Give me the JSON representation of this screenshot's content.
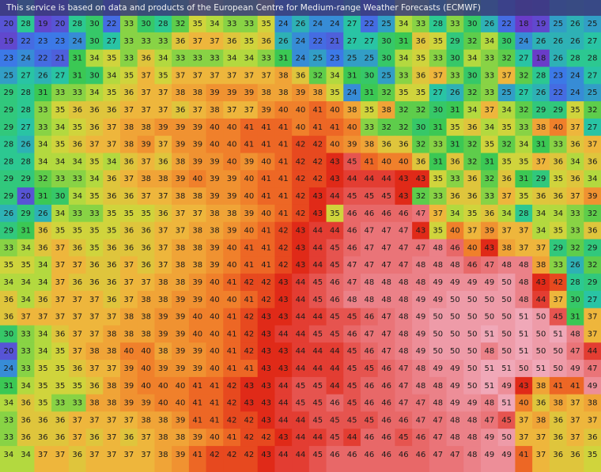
{
  "header": {
    "title": "This service is based on data and products of the European Centre for Medium-range Weather Forecasts (ECMWF)"
  },
  "grid": {
    "rows": [
      [
        20,
        28,
        19,
        20,
        28,
        30,
        22,
        33,
        30,
        28,
        32,
        35,
        34,
        33,
        33,
        35,
        24,
        26,
        24,
        24,
        27,
        22,
        25,
        34,
        33,
        28,
        33,
        30,
        26,
        22,
        18,
        19,
        25,
        26,
        25
      ],
      [
        19,
        22,
        23,
        23,
        24,
        30,
        27,
        33,
        33,
        33,
        36,
        37,
        37,
        36,
        35,
        36,
        26,
        24,
        22,
        21,
        27,
        27,
        30,
        31,
        36,
        35,
        29,
        32,
        34,
        30,
        24,
        26,
        26,
        26,
        27
      ],
      [
        23,
        24,
        22,
        21,
        31,
        34,
        35,
        33,
        36,
        34,
        33,
        33,
        33,
        34,
        34,
        33,
        31,
        24,
        25,
        23,
        25,
        25,
        30,
        34,
        35,
        33,
        30,
        34,
        33,
        32,
        27,
        18,
        26,
        28,
        28
      ],
      [
        25,
        27,
        26,
        27,
        31,
        30,
        34,
        35,
        37,
        35,
        37,
        37,
        37,
        37,
        37,
        37,
        38,
        36,
        32,
        34,
        31,
        30,
        25,
        33,
        36,
        37,
        33,
        30,
        33,
        37,
        32,
        28,
        23,
        24,
        27
      ],
      [
        29,
        28,
        31,
        33,
        33,
        34,
        35,
        36,
        37,
        37,
        38,
        38,
        39,
        39,
        39,
        38,
        38,
        39,
        38,
        35,
        24,
        31,
        32,
        35,
        35,
        27,
        26,
        32,
        33,
        25,
        27,
        26,
        22,
        24,
        25
      ],
      [
        29,
        28,
        33,
        35,
        36,
        36,
        36,
        37,
        37,
        37,
        36,
        37,
        38,
        37,
        37,
        39,
        40,
        40,
        41,
        40,
        38,
        35,
        38,
        32,
        32,
        30,
        31,
        34,
        37,
        34,
        32,
        29,
        29,
        35,
        32
      ],
      [
        29,
        27,
        33,
        34,
        35,
        36,
        37,
        38,
        38,
        39,
        39,
        39,
        40,
        40,
        41,
        41,
        41,
        40,
        41,
        41,
        40,
        33,
        32,
        32,
        30,
        31,
        35,
        36,
        34,
        35,
        33,
        38,
        40,
        37,
        27
      ],
      [
        28,
        26,
        34,
        35,
        36,
        37,
        37,
        38,
        39,
        37,
        39,
        39,
        40,
        40,
        41,
        41,
        41,
        42,
        42,
        40,
        39,
        38,
        36,
        36,
        32,
        33,
        31,
        32,
        35,
        32,
        34,
        31,
        33,
        36,
        37
      ],
      [
        28,
        28,
        34,
        34,
        34,
        35,
        34,
        36,
        37,
        36,
        38,
        39,
        39,
        40,
        39,
        40,
        41,
        42,
        42,
        43,
        45,
        41,
        40,
        40,
        36,
        31,
        36,
        32,
        31,
        35,
        35,
        37,
        36,
        34,
        36
      ],
      [
        29,
        29,
        32,
        33,
        33,
        34,
        36,
        37,
        38,
        38,
        39,
        40,
        39,
        39,
        40,
        41,
        41,
        42,
        42,
        43,
        44,
        44,
        44,
        43,
        43,
        35,
        33,
        36,
        32,
        36,
        31,
        29,
        35,
        36,
        34
      ],
      [
        29,
        20,
        31,
        30,
        34,
        35,
        36,
        36,
        37,
        37,
        38,
        38,
        39,
        39,
        40,
        41,
        41,
        42,
        43,
        44,
        45,
        45,
        45,
        43,
        32,
        33,
        36,
        36,
        33,
        37,
        35,
        36,
        36,
        37,
        39
      ],
      [
        26,
        29,
        26,
        34,
        33,
        33,
        35,
        35,
        35,
        36,
        37,
        37,
        38,
        38,
        39,
        40,
        41,
        42,
        43,
        35,
        46,
        46,
        46,
        46,
        47,
        37,
        34,
        35,
        36,
        34,
        28,
        34,
        34,
        33,
        32
      ],
      [
        29,
        31,
        36,
        35,
        35,
        35,
        35,
        36,
        36,
        37,
        37,
        38,
        38,
        39,
        40,
        41,
        42,
        43,
        44,
        44,
        46,
        47,
        47,
        47,
        43,
        35,
        40,
        37,
        39,
        37,
        37,
        34,
        35,
        33,
        36
      ],
      [
        33,
        34,
        36,
        37,
        36,
        35,
        36,
        36,
        36,
        37,
        38,
        38,
        39,
        40,
        41,
        41,
        42,
        43,
        44,
        45,
        46,
        47,
        47,
        47,
        47,
        48,
        46,
        40,
        43,
        38,
        37,
        37,
        29,
        32,
        29
      ],
      [
        35,
        35,
        34,
        37,
        37,
        36,
        36,
        37,
        36,
        37,
        38,
        38,
        39,
        40,
        41,
        41,
        42,
        43,
        44,
        45,
        47,
        47,
        47,
        47,
        48,
        48,
        48,
        46,
        47,
        48,
        48,
        38,
        33,
        26,
        32
      ],
      [
        34,
        34,
        34,
        37,
        36,
        36,
        36,
        37,
        37,
        38,
        38,
        39,
        40,
        41,
        42,
        42,
        43,
        44,
        45,
        46,
        47,
        48,
        48,
        48,
        48,
        49,
        49,
        49,
        49,
        50,
        48,
        43,
        42,
        28,
        29
      ],
      [
        36,
        34,
        36,
        37,
        37,
        37,
        36,
        37,
        38,
        38,
        39,
        39,
        40,
        40,
        41,
        42,
        43,
        44,
        45,
        46,
        48,
        48,
        48,
        48,
        49,
        49,
        50,
        50,
        50,
        50,
        48,
        44,
        37,
        30,
        27
      ],
      [
        36,
        37,
        37,
        37,
        37,
        37,
        37,
        38,
        38,
        39,
        39,
        40,
        40,
        41,
        42,
        43,
        43,
        44,
        44,
        45,
        45,
        46,
        47,
        48,
        49,
        50,
        50,
        50,
        50,
        50,
        51,
        50,
        45,
        31,
        37
      ],
      [
        30,
        33,
        34,
        36,
        37,
        37,
        38,
        38,
        38,
        39,
        39,
        40,
        40,
        41,
        42,
        43,
        44,
        44,
        45,
        45,
        46,
        47,
        47,
        48,
        49,
        50,
        50,
        50,
        51,
        50,
        51,
        50,
        51,
        48,
        37
      ],
      [
        20,
        33,
        34,
        35,
        37,
        38,
        38,
        40,
        40,
        38,
        39,
        39,
        40,
        41,
        42,
        43,
        43,
        44,
        44,
        44,
        45,
        46,
        47,
        48,
        49,
        50,
        50,
        50,
        48,
        50,
        51,
        50,
        50,
        47,
        44
      ],
      [
        24,
        33,
        35,
        35,
        36,
        37,
        37,
        39,
        40,
        39,
        39,
        39,
        40,
        41,
        41,
        43,
        43,
        44,
        44,
        44,
        45,
        45,
        46,
        47,
        48,
        49,
        49,
        50,
        51,
        51,
        50,
        51,
        50,
        49,
        47
      ],
      [
        31,
        34,
        35,
        35,
        35,
        36,
        38,
        39,
        40,
        40,
        40,
        41,
        41,
        42,
        43,
        43,
        44,
        45,
        45,
        44,
        45,
        46,
        46,
        47,
        48,
        48,
        49,
        50,
        51,
        49,
        43,
        38,
        41,
        41,
        49
      ],
      [
        34,
        36,
        35,
        33,
        33,
        38,
        38,
        39,
        39,
        40,
        40,
        41,
        41,
        42,
        43,
        43,
        44,
        45,
        45,
        46,
        45,
        46,
        46,
        47,
        47,
        48,
        49,
        49,
        48,
        51,
        40,
        36,
        38,
        37,
        38
      ],
      [
        33,
        36,
        36,
        36,
        37,
        37,
        37,
        37,
        38,
        38,
        39,
        41,
        41,
        42,
        42,
        43,
        44,
        44,
        45,
        45,
        45,
        45,
        46,
        46,
        47,
        47,
        48,
        48,
        47,
        45,
        37,
        38,
        36,
        37,
        37
      ],
      [
        33,
        36,
        36,
        36,
        37,
        36,
        37,
        36,
        37,
        38,
        38,
        39,
        40,
        41,
        42,
        42,
        43,
        44,
        44,
        45,
        44,
        46,
        46,
        45,
        46,
        47,
        48,
        48,
        49,
        50,
        37,
        37,
        36,
        37,
        36
      ],
      [
        34,
        34,
        37,
        37,
        36,
        37,
        37,
        37,
        37,
        38,
        39,
        41,
        42,
        42,
        42,
        43,
        44,
        44,
        45,
        46,
        46,
        46,
        46,
        46,
        46,
        47,
        47,
        48,
        49,
        49,
        41,
        37,
        36,
        36,
        35
      ]
    ]
  }
}
